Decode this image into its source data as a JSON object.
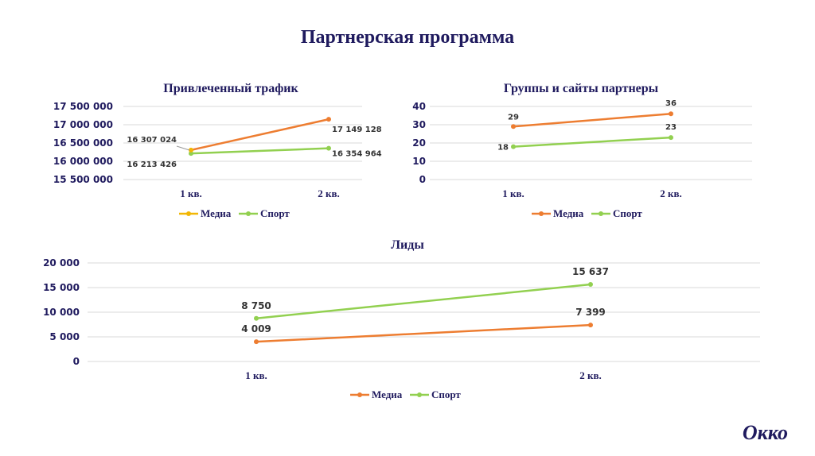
{
  "page": {
    "title": "Партнерская программа",
    "logo": "Окко"
  },
  "colors": {
    "media": "#ed7d31",
    "media_traffic": "#f2b705",
    "sport": "#92d050",
    "text": "#1f1a5e",
    "grid": "#d9d9d9"
  },
  "chart_data": [
    {
      "type": "line",
      "title": "Привлеченный трафик",
      "categories": [
        "1 кв.",
        "2 кв."
      ],
      "ylim": [
        15500000,
        17500000
      ],
      "yticks": [
        "15 500 000",
        "16 000 000",
        "16 500 000",
        "17 000 000",
        "17 500 000"
      ],
      "grid": true,
      "legend": "bottom",
      "series": [
        {
          "name": "Медиа",
          "values": [
            16307024,
            17149128
          ],
          "labels": [
            "16 307 024",
            "17 149 128"
          ]
        },
        {
          "name": "Спорт",
          "values": [
            16213426,
            16354964
          ],
          "labels": [
            "16 213 426",
            "16 354 964"
          ]
        }
      ]
    },
    {
      "type": "line",
      "title": "Группы и сайты партнеры",
      "categories": [
        "1 кв.",
        "2 кв."
      ],
      "ylim": [
        0,
        40
      ],
      "yticks": [
        "0",
        "10",
        "20",
        "30",
        "40"
      ],
      "grid": true,
      "legend": "bottom",
      "series": [
        {
          "name": "Медиа",
          "values": [
            29,
            36
          ],
          "labels": [
            "29",
            "36"
          ]
        },
        {
          "name": "Спорт",
          "values": [
            18,
            23
          ],
          "labels": [
            "18",
            "23"
          ]
        }
      ]
    },
    {
      "type": "line",
      "title": "Лиды",
      "categories": [
        "1 кв.",
        "2 кв."
      ],
      "ylim": [
        0,
        20000
      ],
      "yticks": [
        "0",
        "5 000",
        "10 000",
        "15 000",
        "20 000"
      ],
      "grid": true,
      "legend": "bottom",
      "series": [
        {
          "name": "Медиа",
          "values": [
            4009,
            7399
          ],
          "labels": [
            "4 009",
            "7 399"
          ]
        },
        {
          "name": "Спорт",
          "values": [
            8750,
            15637
          ],
          "labels": [
            "8 750",
            "15 637"
          ]
        }
      ]
    }
  ]
}
